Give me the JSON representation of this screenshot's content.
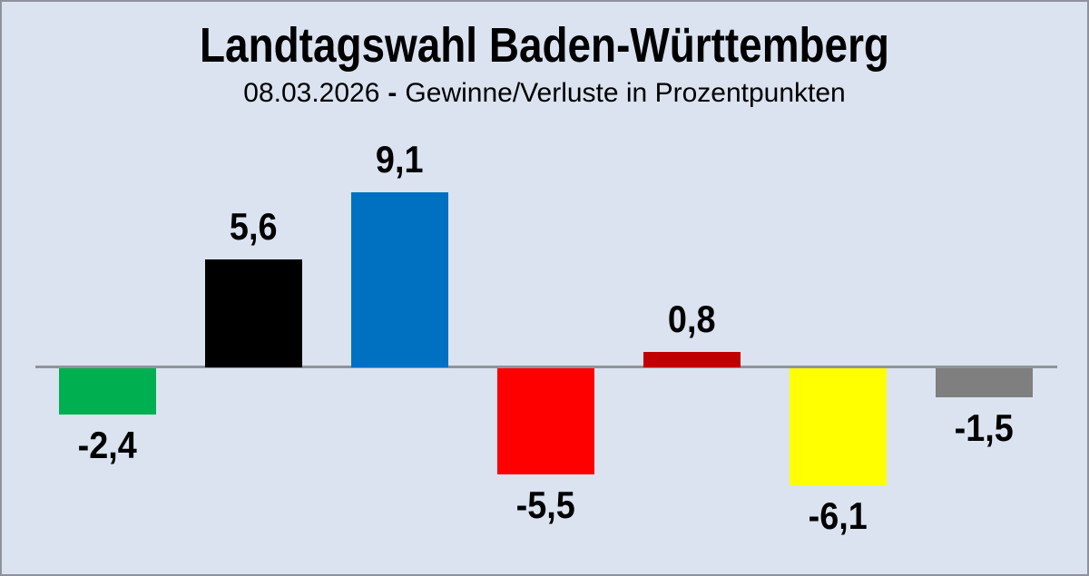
{
  "header": {
    "title": "Landtagswahl Baden-Württemberg",
    "subtitle_date": "08.03.2026",
    "subtitle_dash": "-",
    "subtitle_text": "Gewinne/Verluste in Prozentpunkten"
  },
  "colors": {
    "background": "#dbe3f0",
    "frame_border": "#8e929c",
    "axis_line": "#90949b",
    "text": "#000000"
  },
  "chart_data": {
    "type": "bar",
    "title": "Landtagswahl Baden-Württemberg",
    "subtitle": "08.03.2026 - Gewinne/Verluste in Prozentpunkten",
    "ylabel": "Gewinne/Verluste in Prozentpunkten",
    "baseline": 0,
    "ylim": [
      -6.5,
      9.5
    ],
    "grid": false,
    "legend": false,
    "categories": [
      "green",
      "black",
      "blue",
      "red",
      "dark-red",
      "yellow",
      "gray"
    ],
    "values": [
      -2.4,
      5.6,
      9.1,
      -5.5,
      0.8,
      -6.1,
      -1.5
    ],
    "bars": [
      {
        "color_name": "green",
        "hex": "#00B050",
        "value": -2.4,
        "label": "-2,4"
      },
      {
        "color_name": "black",
        "hex": "#000000",
        "value": 5.6,
        "label": "5,6"
      },
      {
        "color_name": "blue",
        "hex": "#0070C0",
        "value": 9.1,
        "label": "9,1"
      },
      {
        "color_name": "red",
        "hex": "#FF0000",
        "value": -5.5,
        "label": "-5,5"
      },
      {
        "color_name": "dark-red",
        "hex": "#C00000",
        "value": 0.8,
        "label": "0,8"
      },
      {
        "color_name": "yellow",
        "hex": "#FFFF00",
        "value": -6.1,
        "label": "-6,1"
      },
      {
        "color_name": "gray",
        "hex": "#7F7F7F",
        "value": -1.5,
        "label": "-1,5"
      }
    ]
  }
}
